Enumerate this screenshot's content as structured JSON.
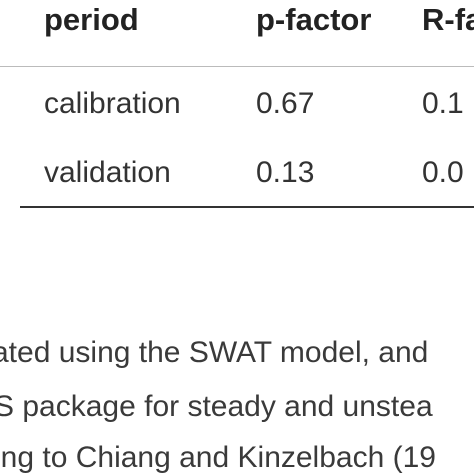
{
  "table": {
    "headers": [
      "period",
      "p-factor",
      "R-fa"
    ],
    "rows": [
      [
        "calibration",
        "0.67",
        "0.1"
      ],
      [
        "validation",
        "0.13",
        "0.0"
      ]
    ]
  },
  "paragraph": {
    "lines": [
      "ated using the SWAT model, and",
      "S package for steady and unstea",
      "ing to Chiang and Kinzelbach (19"
    ]
  }
}
